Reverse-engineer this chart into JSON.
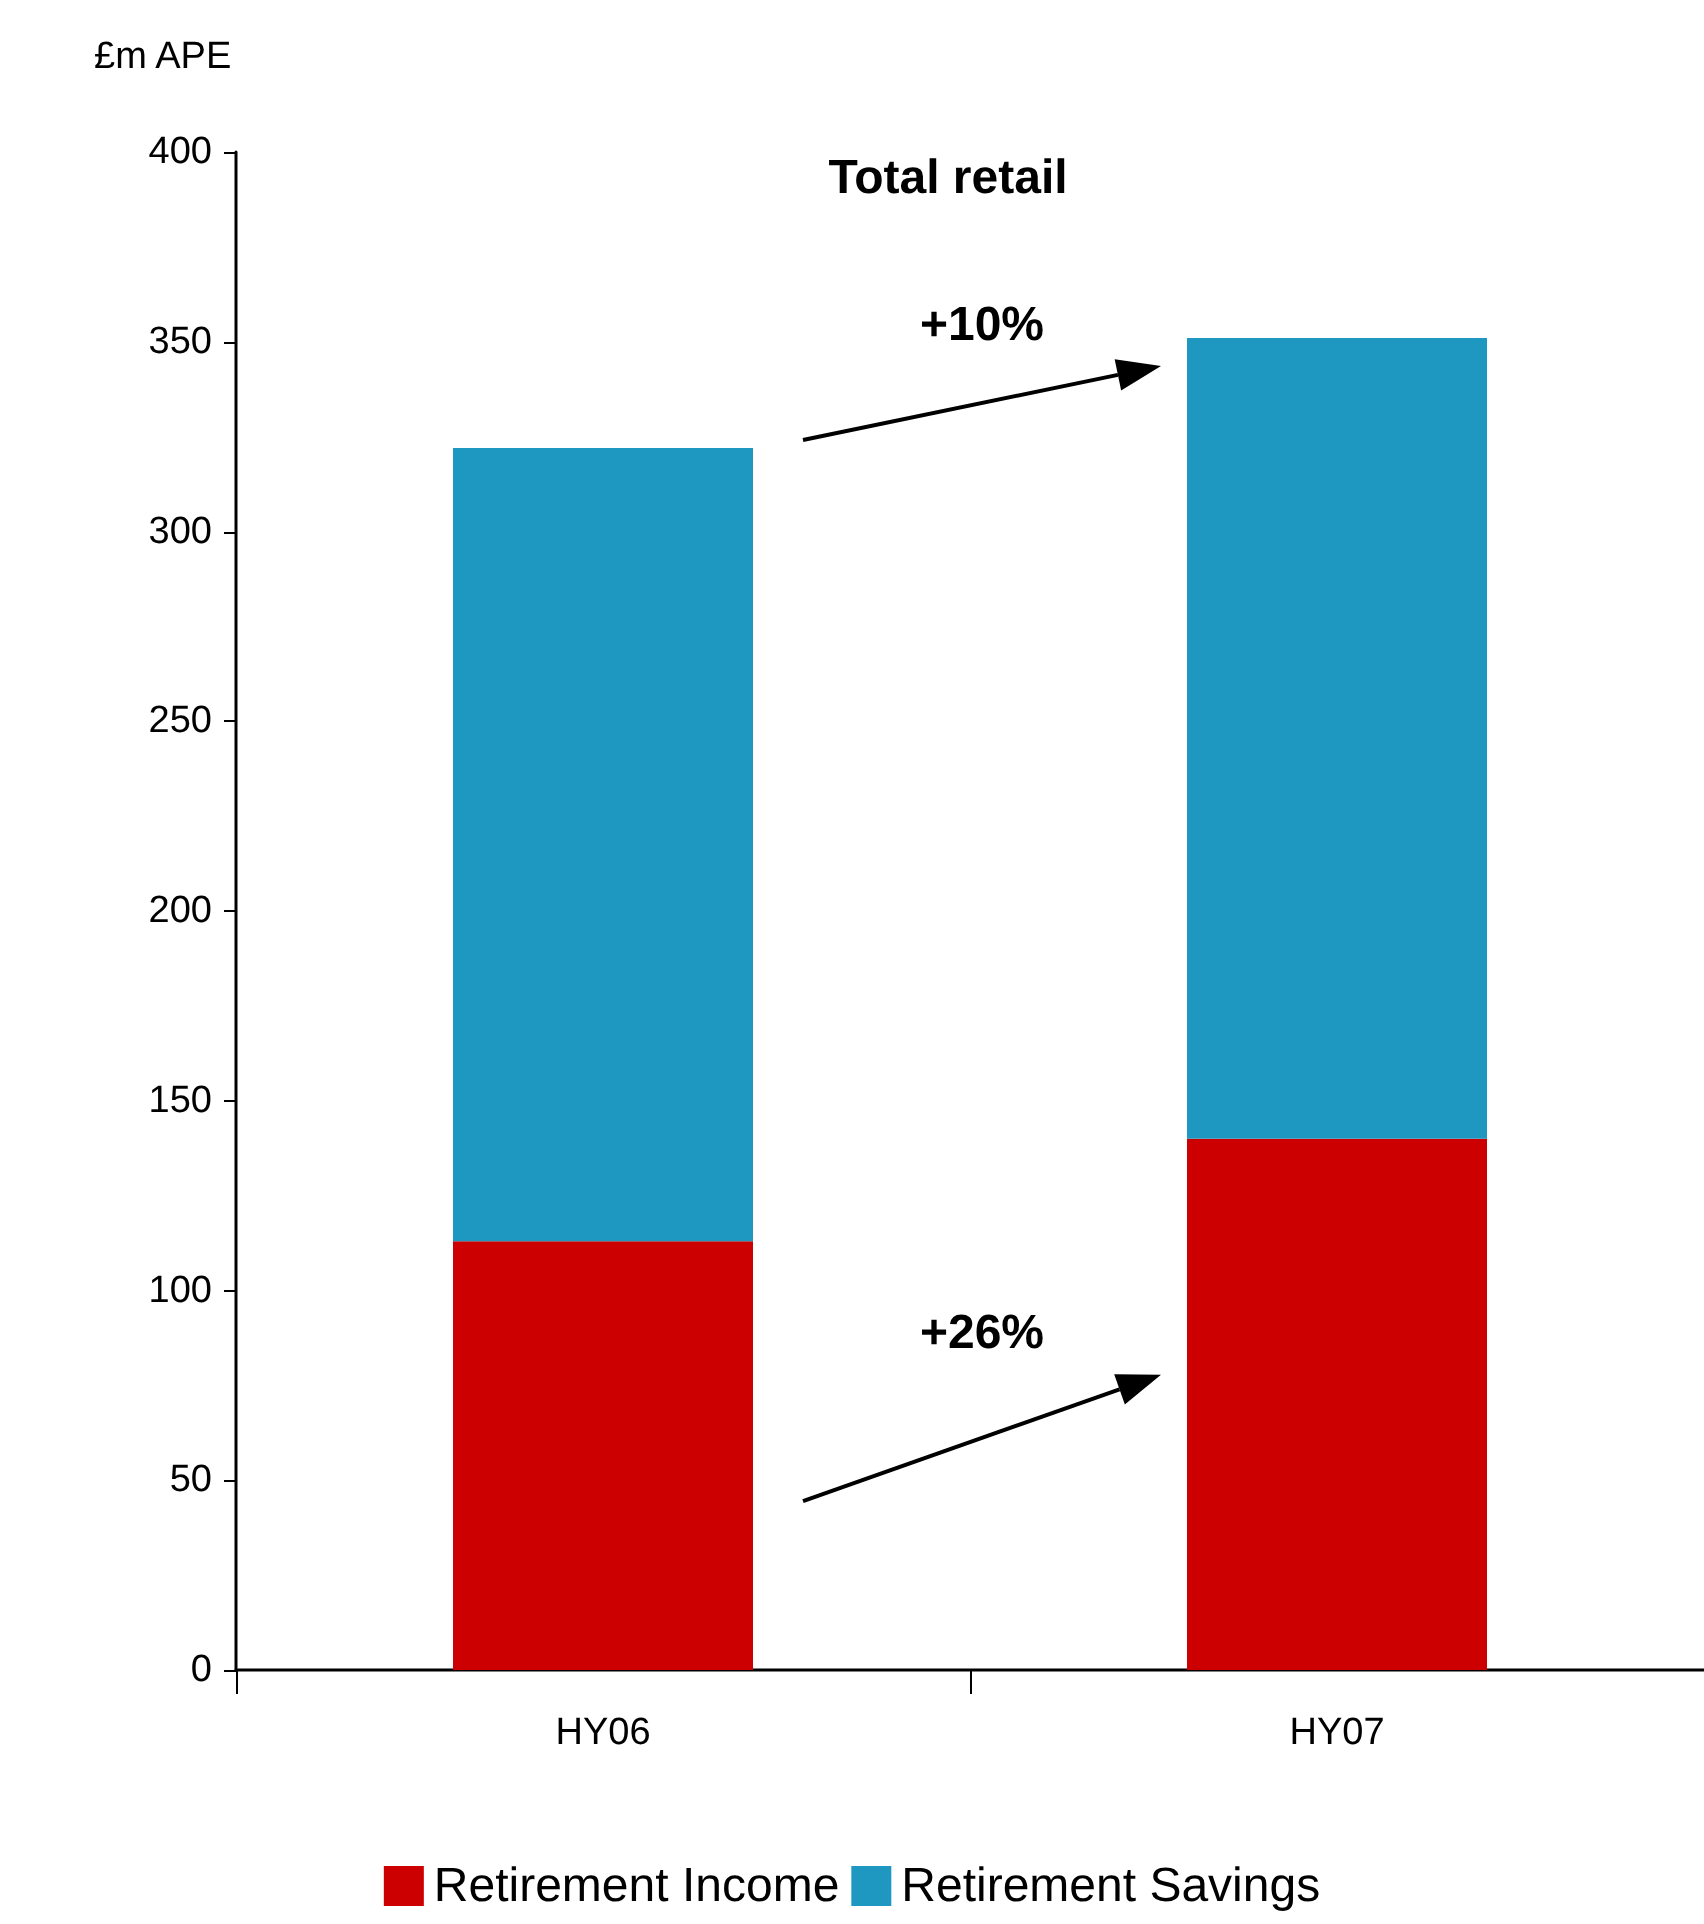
{
  "chart_data": {
    "type": "bar",
    "title": "Total retail",
    "ylabel": "£m APE",
    "categories": [
      "HY06",
      "HY07"
    ],
    "series": [
      {
        "name": "Retirement Income",
        "color": "#cc0000",
        "values": [
          113,
          140
        ]
      },
      {
        "name": "Retirement Savings",
        "color": "#1f98c1",
        "values": [
          209,
          211
        ]
      }
    ],
    "stacked": true,
    "ylim": [
      0,
      400
    ],
    "yticks": [
      0,
      50,
      100,
      150,
      200,
      250,
      300,
      350,
      400
    ],
    "grid": false,
    "legend": "bottom",
    "annotations": [
      "+10%",
      "+26%"
    ]
  }
}
